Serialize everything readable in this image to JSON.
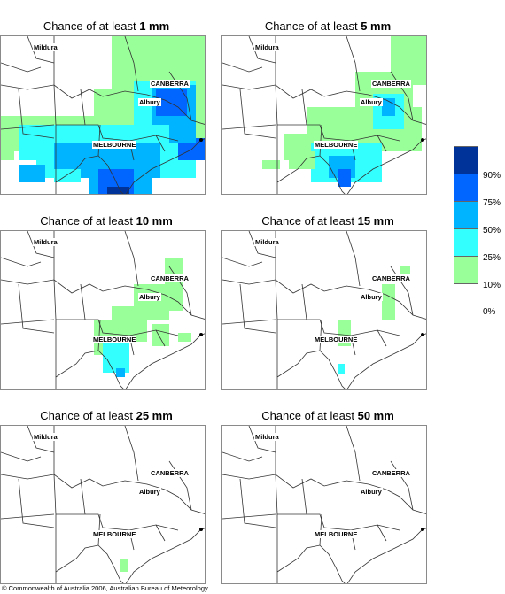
{
  "panels": [
    {
      "prefix": "Chance of at least ",
      "amount": "1 mm"
    },
    {
      "prefix": "Chance of at least ",
      "amount": "5 mm"
    },
    {
      "prefix": "Chance of at least ",
      "amount": "10 mm"
    },
    {
      "prefix": "Chance of at least ",
      "amount": "15 mm"
    },
    {
      "prefix": "Chance of at least ",
      "amount": "25 mm"
    },
    {
      "prefix": "Chance of at least ",
      "amount": "50 mm"
    }
  ],
  "cities": {
    "mildura": "Mildura",
    "canberra": "CANBERRA",
    "albury": "Albury",
    "melbourne": "MELBOURNE"
  },
  "legend": {
    "labels": [
      "90%",
      "75%",
      "50%",
      "25%",
      "10%",
      "0%"
    ],
    "colors": [
      "#003399",
      "#0066ff",
      "#00b4ff",
      "#33ffff",
      "#99ff99",
      "#ffffff"
    ]
  },
  "copyright": "© Commonwealth of Australia 2006, Australian Bureau of Meteorology"
}
